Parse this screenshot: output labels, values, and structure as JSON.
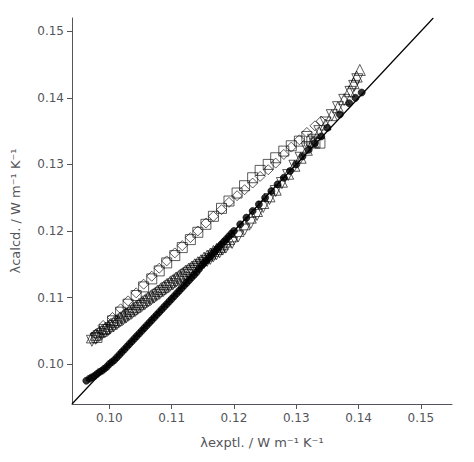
{
  "chart_data": {
    "type": "scatter",
    "x_label": "λexptl. / W m⁻¹ K⁻¹",
    "y_label": "λcalcd. / W m⁻¹ K⁻¹",
    "xlim": [
      0.094,
      0.155
    ],
    "ylim": [
      0.094,
      0.152
    ],
    "xticks": [
      {
        "value": 0.1,
        "label": "0.10"
      },
      0.11,
      0.12,
      0.13,
      0.14,
      0.15
    ],
    "yticks": [
      {
        "value": 0.1,
        "label": "0.10"
      },
      0.11,
      0.12,
      0.13,
      0.14,
      0.15
    ],
    "grid": false,
    "series": [
      {
        "type": "line",
        "line_style": "solid",
        "color": "#000000",
        "values": [
          [
            0.094,
            0.094
          ],
          [
            0.152,
            0.152
          ]
        ]
      },
      {
        "type": "scatter",
        "marker": "circle",
        "color": "#000000",
        "values": [
          [
            0.0963,
            0.0975
          ],
          [
            0.0968,
            0.0978
          ],
          [
            0.0972,
            0.098
          ],
          [
            0.0976,
            0.0982
          ],
          [
            0.098,
            0.0985
          ],
          [
            0.0984,
            0.0988
          ],
          [
            0.0988,
            0.099
          ],
          [
            0.0992,
            0.0993
          ],
          [
            0.0996,
            0.0996
          ],
          [
            0.1,
            0.1
          ],
          [
            0.1004,
            0.1003
          ],
          [
            0.1008,
            0.1006
          ],
          [
            0.1012,
            0.101
          ],
          [
            0.1016,
            0.1014
          ],
          [
            0.102,
            0.1018
          ],
          [
            0.1024,
            0.1022
          ],
          [
            0.1028,
            0.1026
          ],
          [
            0.1032,
            0.103
          ],
          [
            0.1036,
            0.1034
          ],
          [
            0.104,
            0.1038
          ],
          [
            0.1044,
            0.1042
          ],
          [
            0.1048,
            0.1046
          ],
          [
            0.1052,
            0.105
          ],
          [
            0.1056,
            0.1054
          ],
          [
            0.106,
            0.1058
          ],
          [
            0.1064,
            0.1062
          ],
          [
            0.1068,
            0.1066
          ],
          [
            0.1072,
            0.107
          ],
          [
            0.1076,
            0.1074
          ],
          [
            0.108,
            0.1078
          ],
          [
            0.1084,
            0.1082
          ],
          [
            0.1088,
            0.1086
          ],
          [
            0.1092,
            0.109
          ],
          [
            0.1096,
            0.1094
          ],
          [
            0.11,
            0.1098
          ],
          [
            0.1104,
            0.1102
          ],
          [
            0.1108,
            0.1106
          ],
          [
            0.1112,
            0.111
          ],
          [
            0.1116,
            0.1114
          ],
          [
            0.112,
            0.1118
          ],
          [
            0.1124,
            0.1122
          ],
          [
            0.1128,
            0.1126
          ],
          [
            0.1132,
            0.113
          ],
          [
            0.1136,
            0.1134
          ],
          [
            0.114,
            0.1138
          ],
          [
            0.1144,
            0.1143
          ],
          [
            0.1148,
            0.1148
          ],
          [
            0.1152,
            0.1152
          ],
          [
            0.1156,
            0.1156
          ],
          [
            0.116,
            0.116
          ],
          [
            0.1164,
            0.1164
          ],
          [
            0.1168,
            0.1168
          ],
          [
            0.1172,
            0.1172
          ],
          [
            0.1176,
            0.1176
          ],
          [
            0.118,
            0.118
          ],
          [
            0.1184,
            0.1184
          ],
          [
            0.1188,
            0.1188
          ],
          [
            0.1192,
            0.1192
          ],
          [
            0.1196,
            0.1196
          ],
          [
            0.12,
            0.12
          ],
          [
            0.121,
            0.121
          ],
          [
            0.122,
            0.122
          ],
          [
            0.123,
            0.123
          ],
          [
            0.124,
            0.124
          ],
          [
            0.125,
            0.125
          ],
          [
            0.126,
            0.126
          ],
          [
            0.127,
            0.127
          ],
          [
            0.128,
            0.128
          ],
          [
            0.129,
            0.129
          ],
          [
            0.13,
            0.13
          ],
          [
            0.131,
            0.1312
          ],
          [
            0.132,
            0.1322
          ],
          [
            0.133,
            0.1332
          ],
          [
            0.134,
            0.1342
          ],
          [
            0.135,
            0.1355
          ],
          [
            0.137,
            0.1375
          ],
          [
            0.1385,
            0.1392
          ],
          [
            0.1395,
            0.14
          ],
          [
            0.1405,
            0.1408
          ]
        ]
      },
      {
        "type": "scatter",
        "marker": "triangle-up-open",
        "color": "#000000",
        "values": [
          [
            0.0972,
            0.104
          ],
          [
            0.0978,
            0.1044
          ],
          [
            0.0983,
            0.1048
          ],
          [
            0.0988,
            0.105
          ],
          [
            0.0993,
            0.1054
          ],
          [
            0.0998,
            0.1057
          ],
          [
            0.1002,
            0.106
          ],
          [
            0.1007,
            0.1063
          ],
          [
            0.1012,
            0.1066
          ],
          [
            0.1017,
            0.107
          ],
          [
            0.1022,
            0.1073
          ],
          [
            0.1027,
            0.1076
          ],
          [
            0.1032,
            0.108
          ],
          [
            0.1037,
            0.1083
          ],
          [
            0.1042,
            0.1086
          ],
          [
            0.1047,
            0.109
          ],
          [
            0.1052,
            0.1093
          ],
          [
            0.1057,
            0.1096
          ],
          [
            0.1062,
            0.11
          ],
          [
            0.1067,
            0.1103
          ],
          [
            0.1072,
            0.1106
          ],
          [
            0.1077,
            0.111
          ],
          [
            0.1082,
            0.1113
          ],
          [
            0.1087,
            0.1116
          ],
          [
            0.1092,
            0.112
          ],
          [
            0.1097,
            0.1123
          ],
          [
            0.1102,
            0.1126
          ],
          [
            0.1107,
            0.113
          ],
          [
            0.1112,
            0.1133
          ],
          [
            0.1117,
            0.1136
          ],
          [
            0.1122,
            0.114
          ],
          [
            0.1127,
            0.1143
          ],
          [
            0.1132,
            0.1146
          ],
          [
            0.1137,
            0.115
          ],
          [
            0.1142,
            0.1153
          ],
          [
            0.1147,
            0.1156
          ],
          [
            0.1152,
            0.116
          ],
          [
            0.1157,
            0.1163
          ],
          [
            0.1162,
            0.1166
          ],
          [
            0.1167,
            0.117
          ],
          [
            0.1172,
            0.1173
          ],
          [
            0.1177,
            0.1176
          ],
          [
            0.1182,
            0.118
          ],
          [
            0.1187,
            0.1184
          ],
          [
            0.1192,
            0.1188
          ],
          [
            0.1197,
            0.1192
          ],
          [
            0.1207,
            0.12
          ],
          [
            0.1217,
            0.121
          ],
          [
            0.1227,
            0.122
          ],
          [
            0.1237,
            0.123
          ],
          [
            0.1247,
            0.1242
          ],
          [
            0.1257,
            0.1252
          ],
          [
            0.1267,
            0.1262
          ],
          [
            0.1277,
            0.1274
          ],
          [
            0.1287,
            0.1286
          ],
          [
            0.1297,
            0.1298
          ],
          [
            0.1307,
            0.131
          ],
          [
            0.1317,
            0.1322
          ],
          [
            0.1327,
            0.1334
          ],
          [
            0.1337,
            0.1348
          ],
          [
            0.1347,
            0.136
          ],
          [
            0.1357,
            0.1374
          ],
          [
            0.1367,
            0.1386
          ],
          [
            0.1377,
            0.1398
          ],
          [
            0.1385,
            0.141
          ],
          [
            0.1392,
            0.1422
          ],
          [
            0.1397,
            0.1432
          ],
          [
            0.1402,
            0.1442
          ]
        ]
      },
      {
        "type": "scatter",
        "marker": "triangle-down-open",
        "color": "#000000",
        "values": [
          [
            0.0972,
            0.1035
          ],
          [
            0.0978,
            0.1038
          ],
          [
            0.0983,
            0.1042
          ],
          [
            0.0988,
            0.1045
          ],
          [
            0.0993,
            0.1048
          ],
          [
            0.0998,
            0.1051
          ],
          [
            0.1002,
            0.1054
          ],
          [
            0.1007,
            0.1057
          ],
          [
            0.1012,
            0.106
          ],
          [
            0.1017,
            0.1064
          ],
          [
            0.1022,
            0.1067
          ],
          [
            0.1027,
            0.107
          ],
          [
            0.1032,
            0.1074
          ],
          [
            0.1037,
            0.1077
          ],
          [
            0.1042,
            0.108
          ],
          [
            0.1047,
            0.1084
          ],
          [
            0.1052,
            0.1087
          ],
          [
            0.1057,
            0.109
          ],
          [
            0.1062,
            0.1094
          ],
          [
            0.1067,
            0.1097
          ],
          [
            0.1072,
            0.11
          ],
          [
            0.1077,
            0.1104
          ],
          [
            0.1082,
            0.1107
          ],
          [
            0.1087,
            0.111
          ],
          [
            0.1092,
            0.1114
          ],
          [
            0.1097,
            0.1117
          ],
          [
            0.1102,
            0.112
          ],
          [
            0.1107,
            0.1124
          ],
          [
            0.1112,
            0.1127
          ],
          [
            0.1117,
            0.113
          ],
          [
            0.1122,
            0.1134
          ],
          [
            0.1127,
            0.1137
          ],
          [
            0.1132,
            0.114
          ],
          [
            0.1137,
            0.1143
          ],
          [
            0.1142,
            0.1146
          ],
          [
            0.1147,
            0.1149
          ],
          [
            0.1152,
            0.1152
          ],
          [
            0.1157,
            0.1155
          ],
          [
            0.1162,
            0.1158
          ],
          [
            0.1167,
            0.1162
          ],
          [
            0.1172,
            0.1165
          ],
          [
            0.1177,
            0.1168
          ],
          [
            0.1182,
            0.1172
          ],
          [
            0.1187,
            0.1175
          ],
          [
            0.1197,
            0.1182
          ],
          [
            0.1207,
            0.1192
          ],
          [
            0.1217,
            0.1202
          ],
          [
            0.1227,
            0.1212
          ],
          [
            0.1237,
            0.1224
          ],
          [
            0.1247,
            0.1236
          ],
          [
            0.1257,
            0.1248
          ],
          [
            0.1267,
            0.126
          ],
          [
            0.1277,
            0.1272
          ],
          [
            0.1287,
            0.1284
          ],
          [
            0.1297,
            0.1298
          ],
          [
            0.1307,
            0.131
          ],
          [
            0.1317,
            0.1324
          ],
          [
            0.1327,
            0.1337
          ],
          [
            0.1337,
            0.135
          ],
          [
            0.1347,
            0.1363
          ],
          [
            0.1357,
            0.1374
          ],
          [
            0.1367,
            0.1386
          ],
          [
            0.1377,
            0.1397
          ],
          [
            0.1387,
            0.1409
          ],
          [
            0.1393,
            0.1418
          ],
          [
            0.1398,
            0.1428
          ]
        ]
      },
      {
        "type": "scatter",
        "marker": "square-open",
        "color": "#000000",
        "values": [
          [
            0.098,
            0.104
          ],
          [
            0.0992,
            0.1052
          ],
          [
            0.1005,
            0.1065
          ],
          [
            0.1018,
            0.1078
          ],
          [
            0.103,
            0.109
          ],
          [
            0.1043,
            0.1103
          ],
          [
            0.1055,
            0.1116
          ],
          [
            0.1068,
            0.1128
          ],
          [
            0.108,
            0.114
          ],
          [
            0.1092,
            0.1152
          ],
          [
            0.1105,
            0.1163
          ],
          [
            0.1117,
            0.1175
          ],
          [
            0.113,
            0.1187
          ],
          [
            0.1142,
            0.1198
          ],
          [
            0.1155,
            0.121
          ],
          [
            0.1167,
            0.1222
          ],
          [
            0.118,
            0.1234
          ],
          [
            0.1192,
            0.1245
          ],
          [
            0.1205,
            0.1257
          ],
          [
            0.1217,
            0.1268
          ],
          [
            0.123,
            0.128
          ],
          [
            0.1242,
            0.1291
          ],
          [
            0.1255,
            0.13
          ],
          [
            0.1267,
            0.131
          ],
          [
            0.128,
            0.132
          ],
          [
            0.1292,
            0.1328
          ],
          [
            0.1305,
            0.1335
          ],
          [
            0.1317,
            0.1342
          ],
          [
            0.1325,
            0.1335
          ],
          [
            0.133,
            0.1332
          ],
          [
            0.1338,
            0.1332
          ]
        ]
      },
      {
        "type": "scatter",
        "marker": "diamond-open",
        "color": "#000000",
        "values": [
          [
            0.0978,
            0.1045
          ],
          [
            0.099,
            0.1058
          ],
          [
            0.1005,
            0.107
          ],
          [
            0.1018,
            0.1083
          ],
          [
            0.103,
            0.1095
          ],
          [
            0.1043,
            0.1107
          ],
          [
            0.1055,
            0.112
          ],
          [
            0.1068,
            0.1132
          ],
          [
            0.108,
            0.1144
          ],
          [
            0.1092,
            0.1155
          ],
          [
            0.1105,
            0.1167
          ],
          [
            0.1117,
            0.1178
          ],
          [
            0.113,
            0.119
          ],
          [
            0.1142,
            0.12
          ],
          [
            0.1155,
            0.1212
          ],
          [
            0.1167,
            0.1222
          ],
          [
            0.118,
            0.1232
          ],
          [
            0.1192,
            0.1243
          ],
          [
            0.1205,
            0.1253
          ],
          [
            0.1217,
            0.1262
          ],
          [
            0.123,
            0.1272
          ],
          [
            0.1242,
            0.1282
          ],
          [
            0.1255,
            0.1292
          ],
          [
            0.1267,
            0.1302
          ],
          [
            0.128,
            0.1315
          ],
          [
            0.1292,
            0.1326
          ],
          [
            0.1305,
            0.1337
          ],
          [
            0.1317,
            0.1348
          ],
          [
            0.133,
            0.1358
          ],
          [
            0.134,
            0.1365
          ]
        ]
      }
    ]
  }
}
